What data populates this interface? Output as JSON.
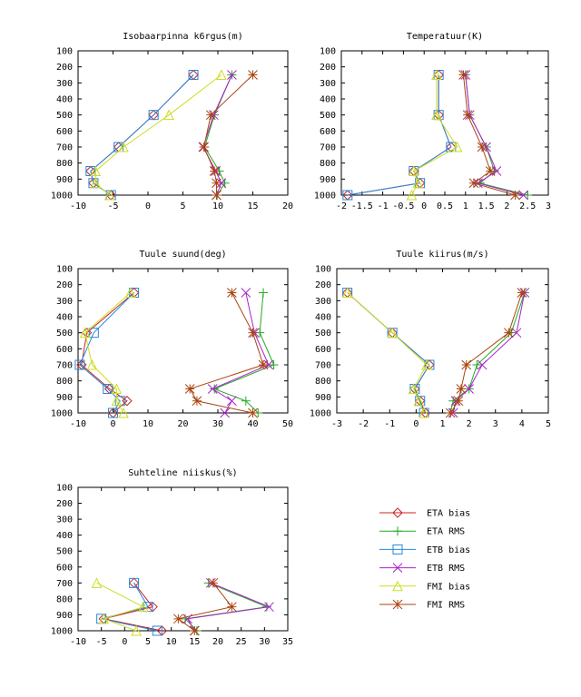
{
  "series_styles": [
    {
      "name": "ETA bias",
      "color": "#cc2222",
      "marker": "diamond"
    },
    {
      "name": "ETA RMS",
      "color": "#22aa22",
      "marker": "plus"
    },
    {
      "name": "ETB bias",
      "color": "#2288dd",
      "marker": "square"
    },
    {
      "name": "ETB RMS",
      "color": "#aa22cc",
      "marker": "cross"
    },
    {
      "name": "FMI bias",
      "color": "#ccdd22",
      "marker": "triangle"
    },
    {
      "name": "FMI RMS",
      "color": "#aa4411",
      "marker": "star"
    }
  ],
  "chart_data": [
    {
      "type": "line",
      "title": "Isobaarpinna k6rgus(m)",
      "xlim": [
        -10,
        20
      ],
      "xticks": [
        -10,
        -5,
        0,
        5,
        10,
        15,
        20
      ],
      "ylim": [
        100,
        1000
      ],
      "yticks": [
        100,
        200,
        300,
        400,
        500,
        600,
        700,
        800,
        900,
        1000
      ],
      "y_inverted": true,
      "y": [
        250,
        500,
        700,
        850,
        925,
        1000
      ],
      "series": [
        {
          "name": "ETA bias",
          "values": [
            6.5,
            0.8,
            -4.2,
            -8.2,
            -7.8,
            -5.3
          ]
        },
        {
          "name": "ETA RMS",
          "values": [
            12,
            9.5,
            8.1,
            10.2,
            11,
            9.9
          ]
        },
        {
          "name": "ETB bias",
          "values": [
            6.5,
            0.8,
            -4.2,
            -8.2,
            -7.8,
            -5.3
          ]
        },
        {
          "name": "ETB RMS",
          "values": [
            12,
            9.4,
            7.9,
            9.7,
            10.5,
            9.8
          ]
        },
        {
          "name": "FMI bias",
          "values": [
            10.5,
            3,
            -3.5,
            -7.5,
            -7.5,
            -5.5
          ]
        },
        {
          "name": "FMI RMS",
          "values": [
            15,
            9,
            8,
            9.5,
            9.8,
            9.8
          ]
        }
      ]
    },
    {
      "type": "line",
      "title": "Temperatuur(K)",
      "xlim": [
        -2,
        3
      ],
      "xticks": [
        -2,
        -1.5,
        -1,
        -0.5,
        0,
        0.5,
        1,
        1.5,
        2,
        2.5,
        3
      ],
      "ylim": [
        100,
        1000
      ],
      "yticks": [
        100,
        200,
        300,
        400,
        500,
        600,
        700,
        800,
        900,
        1000
      ],
      "y_inverted": true,
      "y": [
        250,
        500,
        700,
        850,
        925,
        1000
      ],
      "series": [
        {
          "name": "ETA bias",
          "values": [
            0.35,
            0.35,
            0.65,
            -0.25,
            -0.1,
            -1.85
          ]
        },
        {
          "name": "ETA RMS",
          "values": [
            1,
            1.1,
            1.5,
            1.7,
            1.35,
            2.5
          ]
        },
        {
          "name": "ETB bias",
          "values": [
            0.35,
            0.35,
            0.65,
            -0.25,
            -0.1,
            -1.85
          ]
        },
        {
          "name": "ETB RMS",
          "values": [
            1,
            1.1,
            1.5,
            1.75,
            1.3,
            2.4
          ]
        },
        {
          "name": "FMI bias",
          "values": [
            0.3,
            0.3,
            0.8,
            -0.25,
            -0.15,
            -0.3
          ]
        },
        {
          "name": "FMI RMS",
          "values": [
            0.95,
            1.05,
            1.4,
            1.6,
            1.2,
            2.2
          ]
        }
      ]
    },
    {
      "type": "line",
      "title": "Tuule suund(deg)",
      "xlim": [
        -10,
        50
      ],
      "xticks": [
        -10,
        0,
        10,
        20,
        30,
        40,
        50
      ],
      "ylim": [
        100,
        1000
      ],
      "yticks": [
        100,
        200,
        300,
        400,
        500,
        600,
        700,
        800,
        900,
        1000
      ],
      "y_inverted": true,
      "y": [
        250,
        500,
        700,
        850,
        925,
        1000
      ],
      "series": [
        {
          "name": "ETA bias",
          "values": [
            6,
            -7.5,
            -9,
            -1,
            4,
            0
          ]
        },
        {
          "name": "ETA RMS",
          "values": [
            43,
            42,
            46,
            29,
            38,
            41.5
          ]
        },
        {
          "name": "ETB bias",
          "values": [
            6,
            -5.5,
            -9.5,
            -1.5,
            2,
            0
          ]
        },
        {
          "name": "ETB RMS",
          "values": [
            38,
            40.5,
            44.5,
            28.5,
            34,
            32
          ]
        },
        {
          "name": "FMI bias",
          "values": [
            5,
            -8,
            -6,
            1,
            1,
            3
          ]
        },
        {
          "name": "FMI RMS",
          "values": [
            34,
            40,
            43,
            22,
            24,
            40
          ]
        }
      ]
    },
    {
      "type": "line",
      "title": "Tuule kiirus(m/s)",
      "xlim": [
        -3,
        5
      ],
      "xticks": [
        -3,
        -2,
        -1,
        0,
        1,
        2,
        3,
        4,
        5
      ],
      "ylim": [
        100,
        1000
      ],
      "yticks": [
        100,
        200,
        300,
        400,
        500,
        600,
        700,
        800,
        900,
        1000
      ],
      "y_inverted": true,
      "y": [
        250,
        500,
        700,
        850,
        925,
        1000
      ],
      "series": [
        {
          "name": "ETA bias",
          "values": [
            -2.6,
            -0.9,
            0.5,
            -0.05,
            0.15,
            0.35
          ]
        },
        {
          "name": "ETA RMS",
          "values": [
            4.1,
            3.6,
            2.3,
            2,
            1.4,
            1.3
          ]
        },
        {
          "name": "ETB bias",
          "values": [
            -2.6,
            -0.9,
            0.5,
            -0.05,
            0.15,
            0.3
          ]
        },
        {
          "name": "ETB RMS",
          "values": [
            4.1,
            3.8,
            2.5,
            2,
            1.5,
            1.4
          ]
        },
        {
          "name": "FMI bias",
          "values": [
            -2.6,
            -0.9,
            0.4,
            -0.1,
            0.1,
            0.3
          ]
        },
        {
          "name": "FMI RMS",
          "values": [
            4,
            3.5,
            1.9,
            1.7,
            1.6,
            1.3
          ]
        }
      ]
    },
    {
      "type": "line",
      "title": "Suhteline niiskus(%)",
      "xlim": [
        -10,
        35
      ],
      "xticks": [
        -10,
        -5,
        0,
        5,
        10,
        15,
        20,
        25,
        30,
        35
      ],
      "ylim": [
        100,
        1000
      ],
      "yticks": [
        100,
        200,
        300,
        400,
        500,
        600,
        700,
        800,
        900,
        1000
      ],
      "y_inverted": true,
      "y": [
        700,
        850,
        925,
        1000
      ],
      "series": [
        {
          "name": "ETA bias",
          "values": [
            2,
            6,
            -4.5,
            8
          ]
        },
        {
          "name": "ETA RMS",
          "values": [
            18,
            30.5,
            13,
            15.5
          ]
        },
        {
          "name": "ETB bias",
          "values": [
            2,
            5,
            -5,
            7
          ]
        },
        {
          "name": "ETB RMS",
          "values": [
            18.5,
            31,
            13.5,
            15
          ]
        },
        {
          "name": "FMI bias",
          "values": [
            -6,
            4,
            -4.5,
            2.5
          ]
        },
        {
          "name": "FMI RMS",
          "values": [
            19,
            23,
            11.5,
            15
          ]
        }
      ]
    }
  ]
}
